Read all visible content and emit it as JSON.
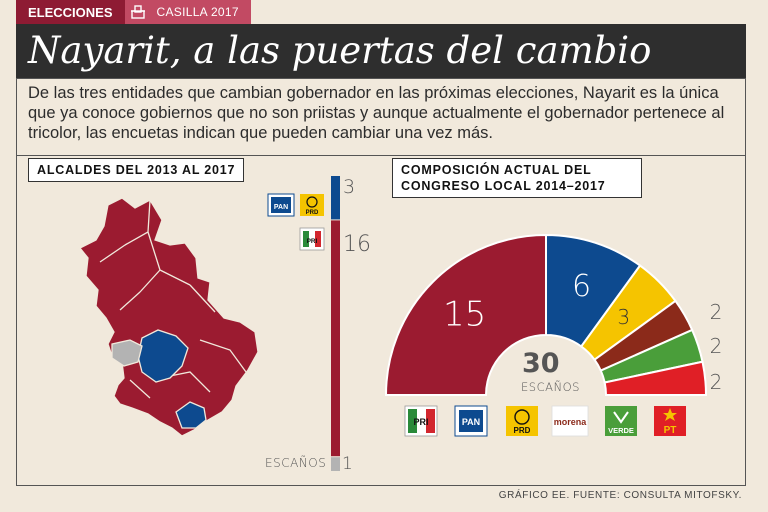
{
  "header": {
    "section": "ELECCIONES",
    "subsection": "CASILLA 2017",
    "title": "Nayarit, a las puertas del cambio",
    "lede": "De las tres entidades que cambian gobernador en las próximas elecciones, Nayarit es la única que ya conoce gobiernos que no son priistas y aunque actualmente el gobernador pertenece al tricolor, las encuetas indican que pueden cambiar una vez más."
  },
  "colors": {
    "pri": "#9b1b30",
    "pan": "#0d4a8f",
    "prd": "#f5c400",
    "morena": "#8b2a1a",
    "verde": "#4a9e3a",
    "pt": "#e01f26",
    "other": "#b3b3b3"
  },
  "chart_data": [
    {
      "type": "bar",
      "title": "ALCALDES DEL 2013 AL 2017",
      "orientation": "vertical-stacked",
      "segments": [
        {
          "party": "PAN-PRD",
          "value": 3,
          "label": "3",
          "color": "#0d4a8f"
        },
        {
          "party": "PRI",
          "value": 16,
          "label": "16",
          "color": "#9b1b30"
        },
        {
          "party": "other",
          "value": 1,
          "label": "1",
          "color": "#b3b3b3"
        }
      ],
      "axis_label": "ESCAÑOS"
    },
    {
      "type": "pie",
      "shape": "half-donut",
      "title": "COMPOSICIÓN ACTUAL DEL CONGRESO LOCAL 2014–2017",
      "total": 30,
      "total_label": "30",
      "center_label": "ESCAÑOS",
      "slices": [
        {
          "party": "PRI",
          "value": 15,
          "label": "15",
          "color": "#9b1b30",
          "logo": "PRI"
        },
        {
          "party": "PAN",
          "value": 6,
          "label": "6",
          "color": "#0d4a8f",
          "logo": "PAN"
        },
        {
          "party": "PRD",
          "value": 3,
          "label": "3",
          "color": "#f5c400",
          "logo": "PRD"
        },
        {
          "party": "MORENA",
          "value": 2,
          "label": "2",
          "color": "#8b2a1a",
          "logo": "morena"
        },
        {
          "party": "VERDE",
          "value": 2,
          "label": "2",
          "color": "#4a9e3a",
          "logo": "VERDE"
        },
        {
          "party": "PT",
          "value": 2,
          "label": "2",
          "color": "#e01f26",
          "logo": "PT"
        }
      ]
    }
  ],
  "credit": "GRÁFICO EE. FUENTE: CONSULTA MITOFSKY."
}
